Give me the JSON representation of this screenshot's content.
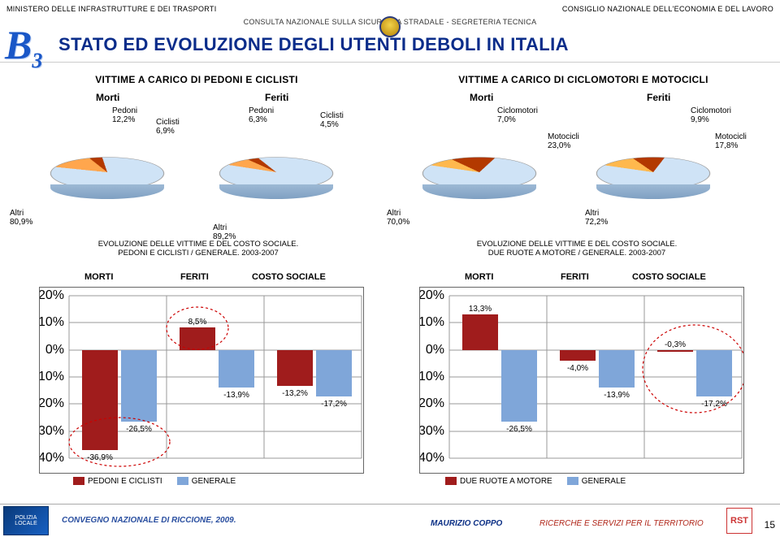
{
  "header": {
    "left": "MINISTERO DELLE INFRASTRUTTURE E DEI TRASPORTI",
    "right": "CONSIGLIO NAZIONALE DELL'ECONOMIA E DEL LAVORO",
    "mid": "CONSULTA NAZIONALE SULLA SICUREZZA STRADALE    -    SEGRETERIA TECNICA",
    "code": "B",
    "codeSub": "3",
    "title": "STATO ED EVOLUZIONE DEGLI UTENTI DEBOLI IN ITALIA"
  },
  "left": {
    "groupTitle": "VITTIME A CARICO DI PEDONI E CICLISTI",
    "morti": "Morti",
    "feriti": "Feriti",
    "mortiPie": {
      "pedoni_lbl": "Pedoni\n12,2%",
      "ciclisti_lbl": "Ciclisti\n6,9%",
      "altri_lbl": "Altri\n80,9%",
      "colors": {
        "altri": "#cfe3f6",
        "pedoni": "#ffa64d",
        "ciclisti": "#b33900"
      },
      "angles": {
        "altri": 291,
        "pedoni": 44,
        "ciclisti": 25
      }
    },
    "feritiPie": {
      "pedoni_lbl": "Pedoni\n6,3%",
      "ciclisti_lbl": "Ciclisti\n4,5%",
      "altri_lbl": "Altri\n89,2%",
      "colors": {
        "altri": "#cfe3f6",
        "pedoni": "#ffa64d",
        "ciclisti": "#b33900"
      },
      "angles": {
        "altri": 321,
        "pedoni": 23,
        "ciclisti": 16
      }
    },
    "evolTitle": "EVOLUZIONE DELLE VITTIME E DEL COSTO SOCIALE.\nPEDONI E CICLISTI / GENERALE. 2003-2007",
    "cols": {
      "m": "MORTI",
      "f": "FERITI",
      "c": "COSTO SOCIALE"
    },
    "bars": {
      "ymin": -40,
      "ymax": 20,
      "ystep": 10,
      "cat_color": "#a01c1c",
      "gen_color": "#7fa6d9",
      "vals": {
        "morti_cat": -36.9,
        "morti_gen": -26.5,
        "feriti_cat": 8.5,
        "feriti_gen": -13.9,
        "costo_cat": -13.2,
        "costo_gen": -17.2
      },
      "labels": {
        "morti_cat": "-36,9%",
        "morti_gen": "-26,5%",
        "feriti_cat": "8,5%",
        "feriti_gen": "-13,9%",
        "costo_cat": "-13,2%",
        "costo_gen": "-17,2%"
      }
    },
    "legend": {
      "cat": "PEDONI E CICLISTI",
      "gen": "GENERALE"
    }
  },
  "right": {
    "groupTitle": "VITTIME A CARICO DI CICLOMOTORI E MOTOCICLI",
    "morti": "Morti",
    "feriti": "Feriti",
    "mortiPie": {
      "ciclo_lbl": "Ciclomotori\n7,0%",
      "moto_lbl": "Motocicli\n23,0%",
      "altri_lbl": "Altri\n70,0%",
      "colors": {
        "altri": "#cfe3f6",
        "ciclo": "#ffb84d",
        "moto": "#b33900"
      },
      "angles": {
        "altri": 252,
        "ciclo": 25,
        "moto": 83
      }
    },
    "feritiPie": {
      "ciclo_lbl": "Ciclomotori\n9,9%",
      "moto_lbl": "Motocicli\n17,8%",
      "altri_lbl": "Altri\n72,2%",
      "colors": {
        "altri": "#cfe3f6",
        "ciclo": "#ffb84d",
        "moto": "#b33900"
      },
      "angles": {
        "altri": 260,
        "ciclo": 36,
        "moto": 64
      }
    },
    "evolTitle": "EVOLUZIONE DELLE VITTIME E DEL COSTO SOCIALE.\nDUE RUOTE A MOTORE / GENERALE. 2003-2007",
    "cols": {
      "m": "MORTI",
      "f": "FERITI",
      "c": "COSTO SOCIALE"
    },
    "bars": {
      "ymin": -40,
      "ymax": 20,
      "ystep": 10,
      "cat_color": "#a01c1c",
      "gen_color": "#7fa6d9",
      "vals": {
        "morti_cat": 13.3,
        "morti_gen": -26.5,
        "feriti_cat": -4.0,
        "feriti_gen": -13.9,
        "costo_cat": -0.3,
        "costo_gen": -17.2
      },
      "labels": {
        "morti_cat": "13,3%",
        "morti_gen": "-26,5%",
        "feriti_cat": "-4,0%",
        "feriti_gen": "-13,9%",
        "costo_cat": "-0,3%",
        "costo_gen": "-17,2%"
      }
    },
    "legend": {
      "cat": "DUE RUOTE A MOTORE",
      "gen": "GENERALE"
    }
  },
  "footer": {
    "conv": "CONVEGNO NAZIONALE DI RICCIONE, 2009.",
    "author": "MAURIZIO COPPO",
    "company": "RICERCHE E SERVIZI PER IL TERRITORIO",
    "logo": "RST",
    "page": "15"
  }
}
